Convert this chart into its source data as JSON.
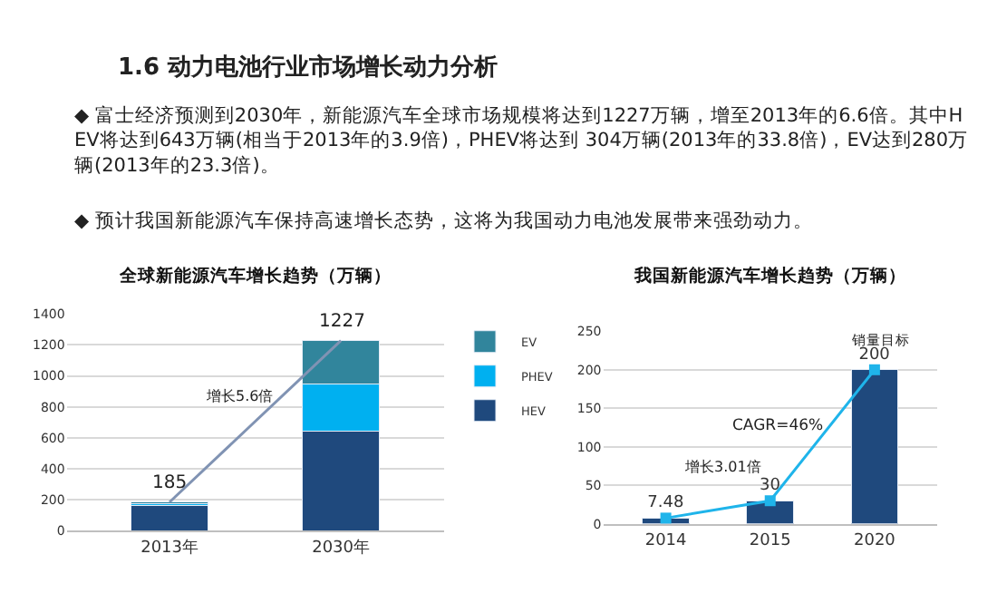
{
  "chart_data": [
    {
      "type": "bar",
      "title": "全球新能源汽车增长趋势（万辆）",
      "categories": [
        "2013年",
        "2030年"
      ],
      "stacked": true,
      "legend": "right",
      "grid": "y",
      "ylim": [
        0,
        1400
      ],
      "yticks": [
        0,
        200,
        400,
        600,
        800,
        1000,
        1200,
        1400
      ],
      "series": [
        {
          "name": "HEV",
          "color": "#1f497d",
          "values": [
            165,
            643
          ]
        },
        {
          "name": "PHEV",
          "color": "#00b0f0",
          "values": [
            9,
            304
          ]
        },
        {
          "name": "EV",
          "color": "#31859c",
          "values": [
            11,
            280
          ]
        },
        {
          "type": "line",
          "color": "#8093b3",
          "values": [
            185,
            1227
          ]
        }
      ],
      "totals": [
        "185",
        "1227"
      ],
      "annotations": [
        "1.6 动力电池行业市场增长动力分析",
        "◆ 富士经济预测到2030年，新能源汽车全球市场规模将达到1227万辆，增至2013年的6.6倍。其中HEV将达到643万辆(相当于2013年的3.9倍)，PHEV将达到 304万辆(2013年的33.8倍)，EV达到280万辆(2013年的23.3倍)。",
        "◆ 预计我国新能源汽车保持高速增长态势，这将为我国动力电池发展带来强劲动力。",
        "增长5.6倍"
      ]
    },
    {
      "type": "bar",
      "title": "我国新能源汽车增长趋势（万辆）",
      "categories": [
        "2014",
        "2015",
        "2020"
      ],
      "grid": "y",
      "marker": "square",
      "ylim": [
        0,
        250
      ],
      "yticks": [
        0,
        50,
        100,
        150,
        200,
        250
      ],
      "series": [
        {
          "color": "#1f497d",
          "values": [
            7.48,
            30,
            200
          ],
          "value_labels": [
            "7.48",
            "30",
            "200"
          ]
        },
        {
          "type": "line",
          "color": "#1fb4ea",
          "values": [
            7.48,
            30,
            200
          ]
        }
      ],
      "annotations": [
        "增长3.01倍",
        "CAGR=46%",
        "销量目标"
      ]
    }
  ]
}
